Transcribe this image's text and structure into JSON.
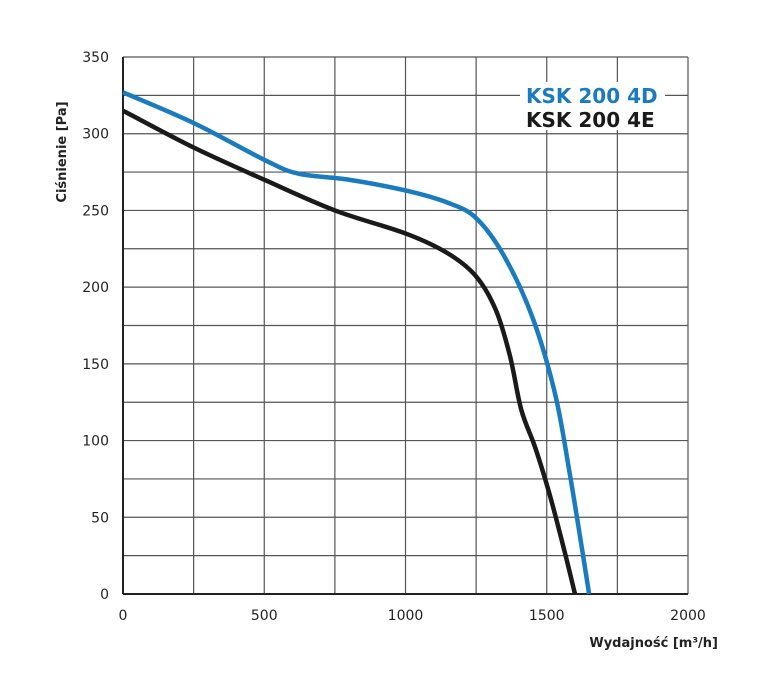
{
  "chart_data": {
    "type": "line",
    "title": "",
    "xlabel": "Wydajność [m³/h]",
    "ylabel": "Ciśnienie [Pa]",
    "xlim": [
      0,
      2000
    ],
    "ylim": [
      0,
      350
    ],
    "x_ticks": [
      0,
      500,
      1000,
      1500,
      2000
    ],
    "y_ticks": [
      0,
      50,
      100,
      150,
      200,
      250,
      300,
      350
    ],
    "grid": true,
    "grid_x_step": 250,
    "grid_y_step": 25,
    "legend_position": "top-right",
    "series": [
      {
        "name": "KSK 200 4D",
        "color": "#1a7bbf",
        "x": [
          0,
          250,
          500,
          620,
          800,
          1000,
          1150,
          1250,
          1350,
          1450,
          1530,
          1580,
          1620,
          1650
        ],
        "y": [
          327,
          307,
          283,
          274,
          270,
          263,
          255,
          245,
          220,
          180,
          130,
          80,
          35,
          0
        ]
      },
      {
        "name": "KSK 200 4E",
        "color": "#1a1a1a",
        "x": [
          0,
          250,
          500,
          750,
          1000,
          1150,
          1250,
          1320,
          1370,
          1410,
          1460,
          1510,
          1560,
          1600
        ],
        "y": [
          315,
          291,
          270,
          250,
          235,
          222,
          207,
          185,
          155,
          120,
          95,
          65,
          30,
          0
        ]
      }
    ]
  }
}
